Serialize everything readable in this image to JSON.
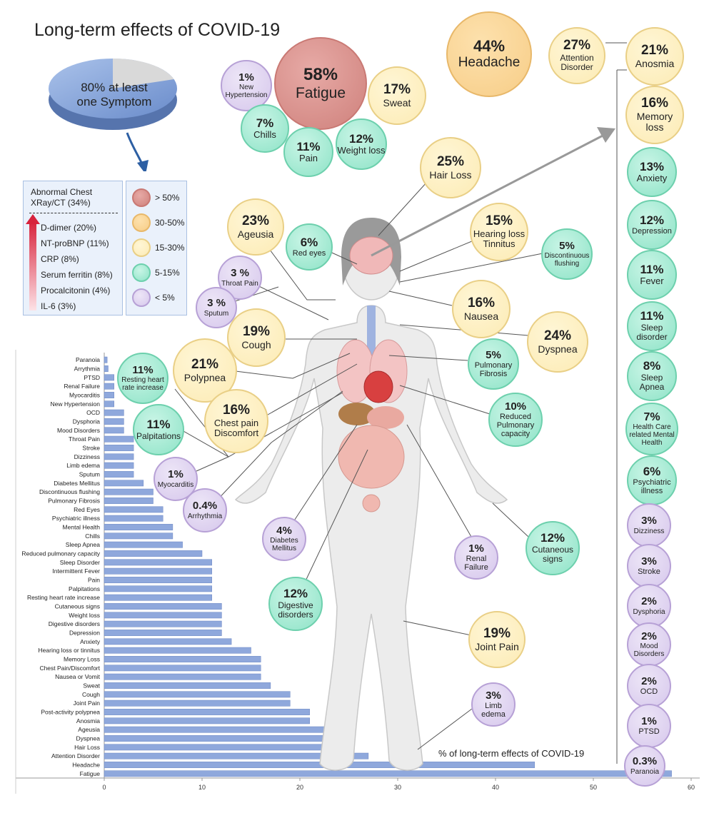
{
  "title": "Long-term effects of COVID-19",
  "pie": {
    "label": "80% at least one Symptom",
    "value": 80
  },
  "legend": {
    "markers_header": "Abnormal Chest XRay/CT (34%)",
    "markers": [
      "D-dimer (20%)",
      "NT-proBNP (11%)",
      "CRP (8%)",
      "Serum ferritin (8%)",
      "Procalcitonin (4%)",
      "IL-6 (3%)"
    ],
    "categories": [
      {
        "label": "> 50%",
        "color": "#d48a85"
      },
      {
        "label": "30-50%",
        "color": "#f8cf8a"
      },
      {
        "label": "15-30%",
        "color": "#fcecb8"
      },
      {
        "label": "5-15%",
        "color": "#98e4ca"
      },
      {
        "label": "< 5%",
        "color": "#d8cbee"
      }
    ]
  },
  "circles": [
    {
      "id": "fatigue",
      "pct": "58%",
      "label": "Fatigue",
      "cls": "red"
    },
    {
      "id": "new-hypertension",
      "pct": "1%",
      "label": "New Hypertension",
      "cls": "purple"
    },
    {
      "id": "sweat",
      "pct": "17%",
      "label": "Sweat",
      "cls": "yellow"
    },
    {
      "id": "chills",
      "pct": "7%",
      "label": "Chills",
      "cls": "green"
    },
    {
      "id": "pain",
      "pct": "11%",
      "label": "Pain",
      "cls": "green"
    },
    {
      "id": "weight-loss",
      "pct": "12%",
      "label": "Weight loss",
      "cls": "green"
    },
    {
      "id": "headache",
      "pct": "44%",
      "label": "Headache",
      "cls": "orange"
    },
    {
      "id": "attention-disorder",
      "pct": "27%",
      "label": "Attention Disorder",
      "cls": "yellow"
    },
    {
      "id": "anosmia",
      "pct": "21%",
      "label": "Anosmia",
      "cls": "yellow"
    },
    {
      "id": "memory-loss",
      "pct": "16%",
      "label": "Memory loss",
      "cls": "yellow"
    },
    {
      "id": "anxiety",
      "pct": "13%",
      "label": "Anxiety",
      "cls": "green"
    },
    {
      "id": "depression",
      "pct": "12%",
      "label": "Depression",
      "cls": "green"
    },
    {
      "id": "fever",
      "pct": "11%",
      "label": "Fever",
      "cls": "green"
    },
    {
      "id": "sleep-disorder",
      "pct": "11%",
      "label": "Sleep disorder",
      "cls": "green"
    },
    {
      "id": "sleep-apnea",
      "pct": "8%",
      "label": "Sleep Apnea",
      "cls": "green"
    },
    {
      "id": "health-care-mental",
      "pct": "7%",
      "label": "Health Care related Mental Health",
      "cls": "green"
    },
    {
      "id": "psychiatric-illness",
      "pct": "6%",
      "label": "Psychiatric illness",
      "cls": "green"
    },
    {
      "id": "dizziness",
      "pct": "3%",
      "label": "Dizziness",
      "cls": "purple"
    },
    {
      "id": "stroke",
      "pct": "3%",
      "label": "Stroke",
      "cls": "purple"
    },
    {
      "id": "dysphoria",
      "pct": "2%",
      "label": "Dysphoria",
      "cls": "purple"
    },
    {
      "id": "mood-disorders",
      "pct": "2%",
      "label": "Mood Disorders",
      "cls": "purple"
    },
    {
      "id": "ocd",
      "pct": "2%",
      "label": "OCD",
      "cls": "purple"
    },
    {
      "id": "ptsd",
      "pct": "1%",
      "label": "PTSD",
      "cls": "purple"
    },
    {
      "id": "paranoia",
      "pct": "0.3%",
      "label": "Paranoia",
      "cls": "purple"
    },
    {
      "id": "hair-loss",
      "pct": "25%",
      "label": "Hair Loss",
      "cls": "yellow"
    },
    {
      "id": "ageusia",
      "pct": "23%",
      "label": "Ageusia",
      "cls": "yellow"
    },
    {
      "id": "red-eyes",
      "pct": "6%",
      "label": "Red eyes",
      "cls": "green"
    },
    {
      "id": "hearing-loss",
      "pct": "15%",
      "label": "Hearing loss Tinnitus",
      "cls": "yellow"
    },
    {
      "id": "discontinuous-flushing",
      "pct": "5%",
      "label": "Discontinuous flushing",
      "cls": "green"
    },
    {
      "id": "throat-pain",
      "pct": "3 %",
      "label": "Throat Pain",
      "cls": "purple"
    },
    {
      "id": "sputum",
      "pct": "3 %",
      "label": "Sputum",
      "cls": "purple"
    },
    {
      "id": "nausea",
      "pct": "16%",
      "label": "Nausea",
      "cls": "yellow"
    },
    {
      "id": "cough",
      "pct": "19%",
      "label": "Cough",
      "cls": "yellow"
    },
    {
      "id": "dyspnea",
      "pct": "24%",
      "label": "Dyspnea",
      "cls": "yellow"
    },
    {
      "id": "polypnea",
      "pct": "21%",
      "label": "Polypnea",
      "cls": "yellow"
    },
    {
      "id": "resting-heart",
      "pct": "11%",
      "label": "Resting heart rate increase",
      "cls": "green"
    },
    {
      "id": "pulmonary-fibrosis",
      "pct": "5%",
      "label": "Pulmonary Fibrosis",
      "cls": "green"
    },
    {
      "id": "chest-pain",
      "pct": "16%",
      "label": "Chest pain Discomfort",
      "cls": "yellow"
    },
    {
      "id": "reduced-pulmonary",
      "pct": "10%",
      "label": "Reduced Pulmonary capacity",
      "cls": "green"
    },
    {
      "id": "palpitations",
      "pct": "11%",
      "label": "Palpitations",
      "cls": "green"
    },
    {
      "id": "myocarditis",
      "pct": "1%",
      "label": "Myocarditis",
      "cls": "purple"
    },
    {
      "id": "arrhythmia",
      "pct": "0.4%",
      "label": "Arrhythmia",
      "cls": "purple"
    },
    {
      "id": "diabetes-mellitus",
      "pct": "4%",
      "label": "Diabetes Mellitus",
      "cls": "purple"
    },
    {
      "id": "renal-failure",
      "pct": "1%",
      "label": "Renal Failure",
      "cls": "purple"
    },
    {
      "id": "cutaneous-signs",
      "pct": "12%",
      "label": "Cutaneous signs",
      "cls": "green"
    },
    {
      "id": "digestive-disorders",
      "pct": "12%",
      "label": "Digestive disorders",
      "cls": "green"
    },
    {
      "id": "joint-pain",
      "pct": "19%",
      "label": "Joint Pain",
      "cls": "yellow"
    },
    {
      "id": "limb-edema",
      "pct": "3%",
      "label": "Limb edema",
      "cls": "purple"
    }
  ],
  "chart_data": {
    "type": "bar",
    "orientation": "horizontal",
    "title": "% of long-term effects of COVID-19",
    "xlim": [
      0,
      60
    ],
    "xticks": [
      0,
      10,
      20,
      30,
      40,
      50,
      60
    ],
    "categories": [
      "Paranoia",
      "Arrythmia",
      "PTSD",
      "Renal Failure",
      "Myocarditis",
      "New Hypertension",
      "OCD",
      "Dysphoria",
      "Mood Disorders",
      "Throat Pain",
      "Stroke",
      "Dizziness",
      "Limb edema",
      "Sputum",
      "Diabetes Mellitus",
      "Discontinuous flushing",
      "Pulmonary Fibrosis",
      "Red Eyes",
      "Psychiatric illness",
      "Mental Health",
      "Chills",
      "Sleep Apnea",
      "Reduced pulmonary capacity",
      "Sleep Disorder",
      "Intermittent Fever",
      "Pain",
      "Palpitations",
      "Resting heart rate increase",
      "Cutaneous signs",
      "Weight loss",
      "Digestive disorders",
      "Depression",
      "Anxiety",
      "Hearing loss or tinnitus",
      "Memory Loss",
      "Chest Pain/Discomfort",
      "Nausea or Vomit",
      "Sweat",
      "Cough",
      "Joint Pain",
      "Post-activity polypnea",
      "Anosmia",
      "Ageusia",
      "Dyspnea",
      "Hair Loss",
      "Attention Disorder",
      "Headache",
      "Fatigue"
    ],
    "values": [
      0.3,
      0.4,
      1,
      1,
      1,
      1,
      2,
      2,
      2,
      3,
      3,
      3,
      3,
      3,
      4,
      5,
      5,
      6,
      6,
      7,
      7,
      8,
      10,
      11,
      11,
      11,
      11,
      11,
      12,
      12,
      12,
      12,
      13,
      15,
      16,
      16,
      16,
      17,
      19,
      19,
      21,
      21,
      23,
      24,
      25,
      27,
      44,
      58
    ],
    "bar_color": "#8fa8dc"
  }
}
